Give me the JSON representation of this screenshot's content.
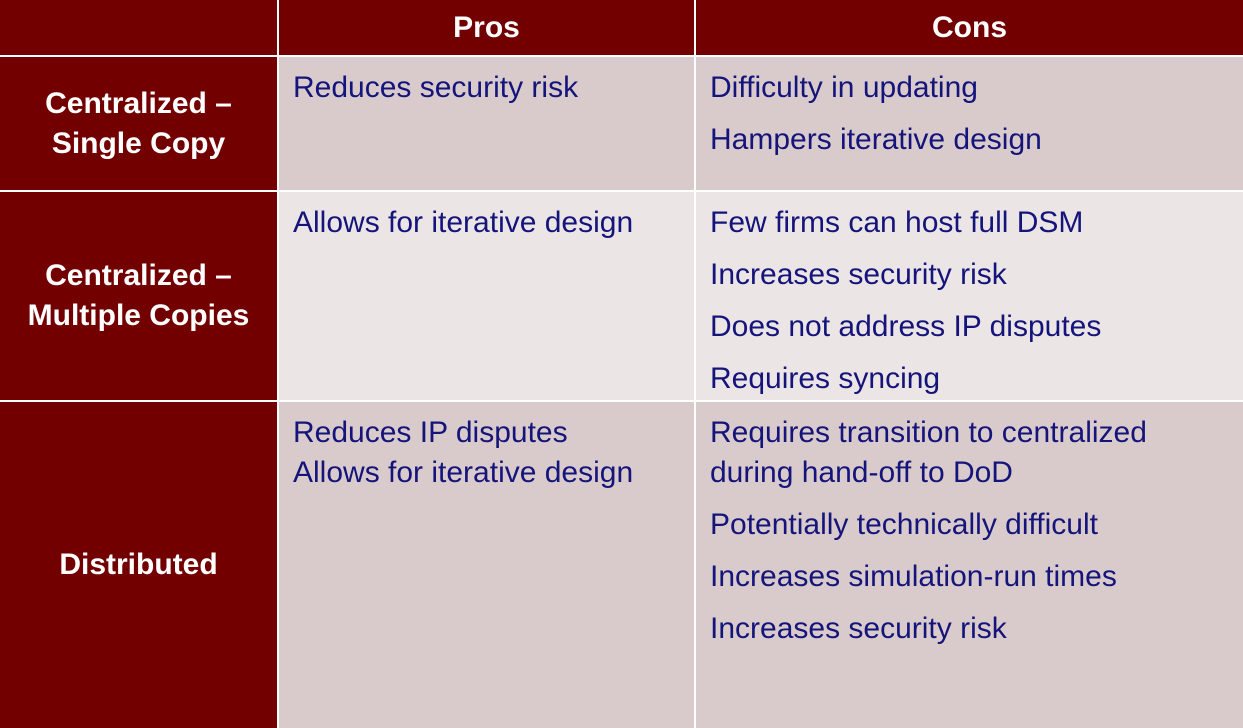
{
  "header": {
    "pros_label": "Pros",
    "cons_label": "Cons"
  },
  "rows": [
    {
      "label_lines": [
        "Centralized –",
        "Single Copy"
      ],
      "pros": [
        [
          "Reduces security risk"
        ]
      ],
      "cons": [
        [
          "Difficulty in updating"
        ],
        [
          "Hampers iterative design"
        ]
      ]
    },
    {
      "label_lines": [
        "Centralized –",
        "Multiple Copies"
      ],
      "pros": [
        [
          "Allows for iterative design"
        ]
      ],
      "cons": [
        [
          "Few firms can host full DSM"
        ],
        [
          "Increases security risk"
        ],
        [
          "Does not address IP disputes"
        ],
        [
          "Requires syncing"
        ]
      ]
    },
    {
      "label_lines": [
        "Distributed"
      ],
      "pros": [
        [
          "Reduces IP disputes",
          "Allows for iterative design"
        ]
      ],
      "cons": [
        [
          "Requires transition to centralized",
          "during hand-off to DoD"
        ],
        [
          "Potentially technically difficult"
        ],
        [
          "Increases simulation-run times"
        ],
        [
          "Increases security risk"
        ]
      ]
    }
  ],
  "colors": {
    "header_bg": "#720000",
    "header_text": "#ffffff",
    "cell_bg_dark": "#d9cbcc",
    "cell_bg_light": "#ece5e6",
    "body_text": "#14147a"
  }
}
